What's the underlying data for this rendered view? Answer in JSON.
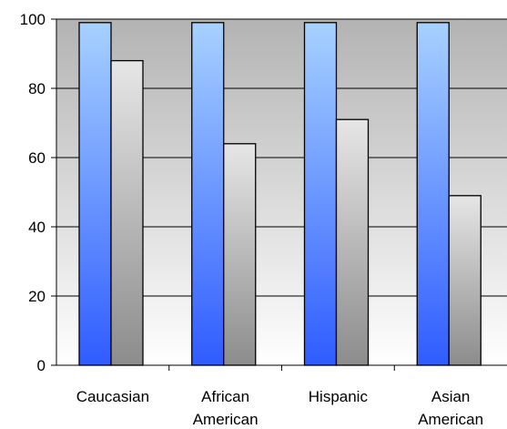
{
  "chart_data": {
    "type": "bar",
    "categories": [
      "Caucasian",
      "African\nAmerican",
      "Hispanic",
      "Asian\nAmerican"
    ],
    "series": [
      {
        "values": [
          99,
          99,
          99,
          99
        ],
        "color": "#3b6cff"
      },
      {
        "values": [
          88,
          64,
          71,
          49
        ],
        "color": "#a6a6a6"
      }
    ],
    "ylim": [
      0,
      100
    ],
    "yticks": [
      0,
      20,
      40,
      60,
      80,
      100
    ],
    "grid": true,
    "title": "",
    "xlabel": "",
    "ylabel": ""
  }
}
